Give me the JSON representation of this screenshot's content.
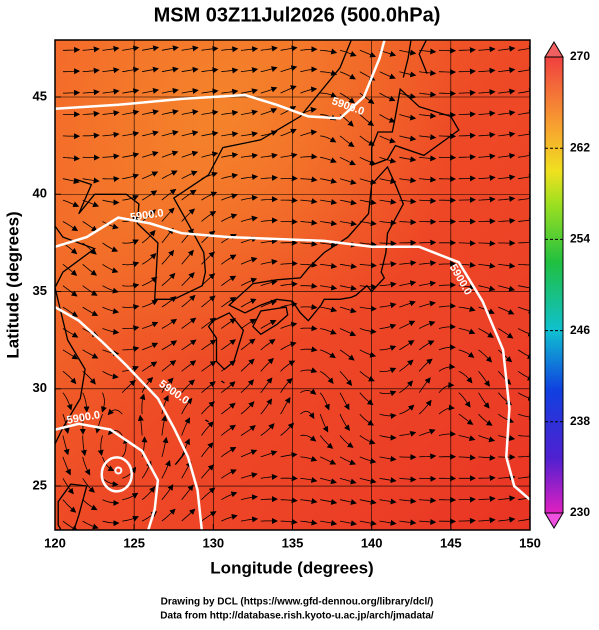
{
  "chart_data": {
    "type": "map",
    "title": "MSM 03Z11Jul2026 (500.0hPa)",
    "x_label": "Longitude (degrees)",
    "y_label": "Latitude  (degrees)",
    "xlim": [
      120,
      150
    ],
    "ylim": [
      22.74,
      47.93
    ],
    "xticks": [
      120,
      125,
      130,
      135,
      140,
      145,
      150
    ],
    "yticks": [
      25,
      30,
      35,
      40,
      45
    ],
    "grid": true,
    "contour_labels": [
      "5900.0",
      "5900.0",
      "5900.0",
      "5900.0",
      "5900.0"
    ],
    "colorbar": {
      "lim": [
        230,
        270
      ],
      "ticks": [
        230,
        238,
        246,
        254,
        262,
        270
      ]
    },
    "footer": [
      "Drawing by DCL (https://www.gfd-dennou.org/library/dcl/)",
      "Data from http://database.rish.kyoto-u.ac.jp/arch/jmadata/"
    ]
  }
}
